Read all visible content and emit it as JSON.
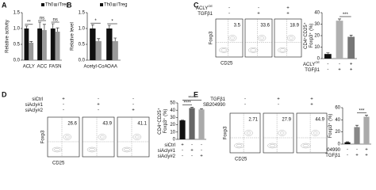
{
  "chart_data": [
    {
      "type": "bar",
      "label": "A",
      "ylabel": [
        "Relative activity"
      ],
      "categories": [
        "ACLY",
        "ACC",
        "FASN"
      ],
      "series": [
        {
          "name": "Th0",
          "color": "#111111",
          "values": [
            1.0,
            1.0,
            1.0
          ],
          "errors": [
            0.08,
            0.2,
            0.15
          ]
        },
        {
          "name": "iTreg",
          "color": "#9a9a9a",
          "values": [
            0.55,
            0.95,
            0.9
          ],
          "errors": [
            0.04,
            0.18,
            0.12
          ]
        }
      ],
      "annotations": [
        "**",
        "ns",
        "ns"
      ],
      "ylim": [
        0,
        1.5
      ],
      "yticks": [
        {
          "value": 0,
          "label": "0.0"
        },
        {
          "value": 0.5,
          "label": "0.5"
        },
        {
          "value": 1,
          "label": "1.0"
        },
        {
          "value": 1.5,
          "label": "1.5"
        }
      ]
    },
    {
      "type": "bar",
      "label": "B",
      "ylabel": [
        "Relative level"
      ],
      "categories": [
        "Acetyl-CoA",
        "OAA"
      ],
      "series": [
        {
          "name": "Th0",
          "color": "#111111",
          "values": [
            1.0,
            1.0
          ],
          "errors": [
            0.12,
            0.1
          ]
        },
        {
          "name": "iTreg",
          "color": "#9a9a9a",
          "values": [
            0.6,
            0.6
          ],
          "errors": [
            0.08,
            0.1
          ]
        }
      ],
      "annotations": [
        "*",
        "*"
      ],
      "ylim": [
        0,
        1.5
      ],
      "yticks": [
        {
          "value": 0,
          "label": "0.0"
        },
        {
          "value": 0.5,
          "label": "0.5"
        },
        {
          "value": 1,
          "label": "1.0"
        },
        {
          "value": 1.5,
          "label": "1.5"
        }
      ]
    },
    {
      "type": "bar",
      "label": "C",
      "ylabel": [
        "CD4⁺CD25⁺",
        "Foxp3⁺ (%)"
      ],
      "categories": [
        null,
        null,
        null
      ],
      "values": [
        4,
        33,
        19
      ],
      "errors": [
        1,
        1.5,
        1.5
      ],
      "colors": [
        "#111111",
        "#b0b0b0",
        "#777777"
      ],
      "conditions": [
        {
          "name": "ACLY",
          "sup": "OE",
          "signs": [
            "-",
            "-",
            "+"
          ]
        },
        {
          "name": "TGFβ1",
          "signs": [
            "-",
            "+",
            "+"
          ]
        }
      ],
      "annotations": [
        "***"
      ],
      "ylim": [
        0,
        40
      ],
      "yticks": [
        0,
        10,
        20,
        30,
        40
      ]
    },
    {
      "type": "bar",
      "label": "D",
      "ylabel": [
        "CD4⁺CD25⁺",
        "Foxp3⁺ (%)"
      ],
      "categories": [
        null,
        null,
        null
      ],
      "values": [
        26,
        43,
        41
      ],
      "errors": [
        0.5,
        1,
        1
      ],
      "colors": [
        "#111111",
        "#666666",
        "#aaaaaa"
      ],
      "conditions": [
        {
          "name": "siCtrl",
          "signs": [
            "+",
            "-",
            "-"
          ]
        },
        {
          "name": "siAcly#1",
          "signs": [
            "-",
            "+",
            "-"
          ]
        },
        {
          "name": "siAcly#2",
          "signs": [
            "-",
            "-",
            "+"
          ]
        }
      ],
      "annotations": [
        "****",
        "****"
      ],
      "ylim": [
        0,
        50
      ],
      "yticks": [
        0,
        10,
        20,
        30,
        40,
        50
      ]
    },
    {
      "type": "bar",
      "label": "E",
      "ylabel": [
        "CD4⁺CD25⁺",
        "Foxp3⁺ (%)"
      ],
      "categories": [
        null,
        null,
        null
      ],
      "values": [
        3,
        28,
        45
      ],
      "errors": [
        0.8,
        3,
        2.5
      ],
      "colors": [
        "#111111",
        "#888888",
        "#aaaaaa"
      ],
      "conditions": [
        {
          "name": "SB204990",
          "signs": [
            "-",
            "-",
            "+"
          ]
        },
        {
          "name": "TGFβ1",
          "signs": [
            "-",
            "+",
            "+"
          ]
        }
      ],
      "annotations": [
        "***"
      ],
      "ylim": [
        0,
        60
      ],
      "yticks": [
        0,
        20,
        40,
        60
      ]
    }
  ],
  "flow": [
    {
      "yaxis": "Foxp3",
      "xaxis": "CD25",
      "values": [
        "3.5",
        "33.6",
        "18.9"
      ],
      "conditions": [
        {
          "name": "ACLY",
          "sup": "OE",
          "signs": [
            "-",
            "-",
            "+"
          ]
        },
        {
          "name": "TGFβ1",
          "signs": [
            "-",
            "+",
            "+"
          ]
        }
      ]
    },
    {
      "yaxis": "Foxp3",
      "xaxis": "CD25",
      "values": [
        "26.6",
        "43.9",
        "41.1"
      ],
      "conditions": [
        {
          "name": "siCtrl",
          "signs": [
            "+",
            "-",
            "-"
          ]
        },
        {
          "name": "siAcly#1",
          "signs": [
            "-",
            "+",
            "-"
          ]
        },
        {
          "name": "siAcly#2",
          "signs": [
            "-",
            "-",
            "+"
          ]
        }
      ]
    },
    {
      "yaxis": "Foxp3",
      "xaxis": "CD25",
      "values": [
        "2.71",
        "27.9",
        "44.9"
      ],
      "conditions": [
        {
          "name": "TGFβ1",
          "signs": [
            "-",
            "+",
            "+"
          ]
        },
        {
          "name": "SB204990",
          "signs": [
            "-",
            "-",
            "+"
          ]
        }
      ]
    }
  ]
}
